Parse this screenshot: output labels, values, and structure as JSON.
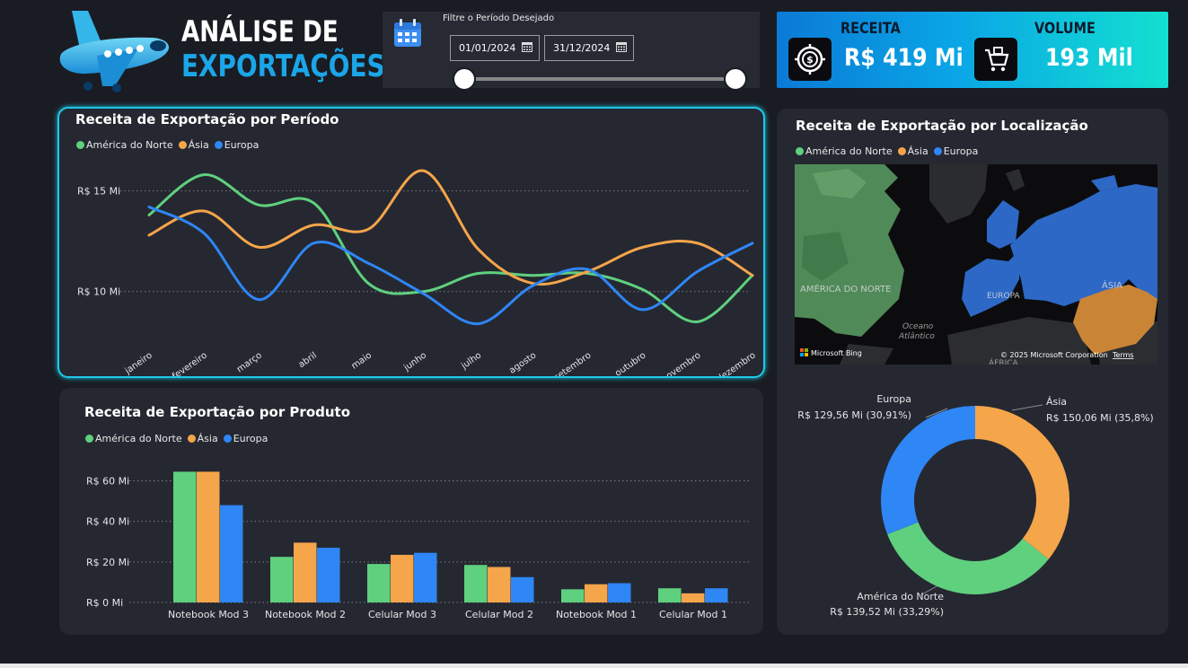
{
  "header": {
    "title_line1": "ANÁLISE DE",
    "title_line2": "EXPORTAÇÕES"
  },
  "filter": {
    "label": "Filtre o Período Desejado",
    "start_date": "01/01/2024",
    "end_date": "31/12/2024",
    "slider_start": 0,
    "slider_end": 1
  },
  "kpi": {
    "revenue_label": "RECEITA",
    "revenue_value": "R$ 419 Mi",
    "volume_label": "VOLUME",
    "volume_value": "193 Mil"
  },
  "colors": {
    "america_do_norte": "#5fd07e",
    "asia": "#f5a54a",
    "europa": "#2f86f5",
    "accent": "#1fc7e8"
  },
  "legend": {
    "america_do_norte": "América do Norte",
    "asia": "Ásia",
    "europa": "Europa"
  },
  "line_panel": {
    "title": "Receita de Exportação por Período"
  },
  "bar_panel": {
    "title": "Receita de Exportação por Produto"
  },
  "map_panel": {
    "title": "Receita de Exportação por Localização",
    "map_labels": {
      "america": "AMÉRICA DO NORTE",
      "europa": "EUROPA",
      "asia": "ÁSIA",
      "ocean_line1": "Oceano",
      "ocean_line2": "Atlântico",
      "africa": "ÁFRICA"
    },
    "attribution": "© 2025 Microsoft Corporation",
    "terms": "Terms",
    "bing": "Microsoft Bing"
  },
  "chart_data": [
    {
      "type": "line",
      "title": "Receita de Exportação por Período",
      "categories": [
        "janeiro",
        "fevereiro",
        "março",
        "abril",
        "maio",
        "junho",
        "julho",
        "agosto",
        "setembro",
        "outubro",
        "novembro",
        "dezembro"
      ],
      "y_ticks": [
        "R$ 10 Mi",
        "R$ 15 Mi"
      ],
      "y_tick_values": [
        10,
        15
      ],
      "ylim": [
        7.4,
        17.3
      ],
      "grid": true,
      "legend_position": "top-left",
      "series": [
        {
          "name": "América do Norte",
          "values": [
            13.8,
            15.8,
            14.3,
            14.4,
            10.4,
            10.0,
            10.9,
            10.8,
            10.9,
            10.1,
            8.5,
            10.8
          ]
        },
        {
          "name": "Ásia",
          "values": [
            12.8,
            14.0,
            12.2,
            13.3,
            13.1,
            16.0,
            12.1,
            10.4,
            11.0,
            12.2,
            12.4,
            10.8
          ]
        },
        {
          "name": "Europa",
          "values": [
            14.2,
            12.9,
            9.6,
            12.4,
            11.4,
            9.9,
            8.4,
            10.3,
            11.1,
            9.1,
            11.0,
            12.4
          ]
        }
      ]
    },
    {
      "type": "bar",
      "title": "Receita de Exportação por Produto",
      "categories": [
        "Notebook Mod 3",
        "Notebook Mod 2",
        "Celular Mod 3",
        "Celular Mod 2",
        "Notebook Mod 1",
        "Celular Mod 1"
      ],
      "y_ticks": [
        "R$ 0 Mi",
        "R$ 20 Mi",
        "R$ 40 Mi",
        "R$ 60 Mi"
      ],
      "y_tick_values": [
        0,
        20,
        40,
        60
      ],
      "ylim": [
        0,
        66
      ],
      "grid": true,
      "legend_position": "top-left",
      "series": [
        {
          "name": "América do Norte",
          "values": [
            64.5,
            22.5,
            19.0,
            18.5,
            6.5,
            7.0
          ]
        },
        {
          "name": "Ásia",
          "values": [
            64.5,
            29.5,
            23.5,
            17.5,
            9.0,
            4.5
          ]
        },
        {
          "name": "Europa",
          "values": [
            48.0,
            27.0,
            24.5,
            12.5,
            9.5,
            7.0
          ]
        }
      ]
    },
    {
      "type": "pie",
      "donut": true,
      "slices": [
        {
          "name": "Ásia",
          "label": "Ásia",
          "value_label": "R$ 150,06 Mi (35,8%)",
          "value": 150.06
        },
        {
          "name": "América do Norte",
          "label": "América do Norte",
          "value_label": "R$ 139,52 Mi (33,29%)",
          "value": 139.52
        },
        {
          "name": "Europa",
          "label": "Europa",
          "value_label": "R$ 129,56 Mi (30,91%)",
          "value": 129.56
        }
      ]
    }
  ]
}
